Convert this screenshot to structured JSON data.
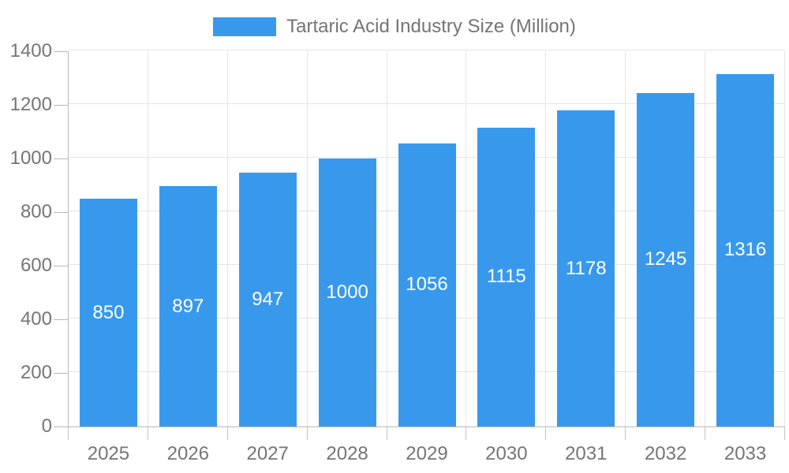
{
  "legend": {
    "label": "Tartaric Acid Industry Size (Million)"
  },
  "chart_data": {
    "type": "bar",
    "title": "Tartaric Acid Industry Size (Million)",
    "categories": [
      "2025",
      "2026",
      "2027",
      "2028",
      "2029",
      "2030",
      "2031",
      "2032",
      "2033"
    ],
    "values": [
      850,
      897,
      947,
      1000,
      1056,
      1115,
      1178,
      1245,
      1316
    ],
    "y_ticks": [
      0,
      200,
      400,
      600,
      800,
      1000,
      1200,
      1400
    ],
    "ylim": [
      0,
      1400
    ],
    "xlabel": "",
    "ylabel": "",
    "grid": true,
    "legend_position": "top-center",
    "bar_labels_inside": true
  },
  "colors": {
    "bar": "#3899ec",
    "bar_label_text": "#ffffff",
    "axis_line": "#b8b8b8",
    "gridline": "#e6e6e6",
    "axis_text": "#757575",
    "background": "#ffffff"
  }
}
